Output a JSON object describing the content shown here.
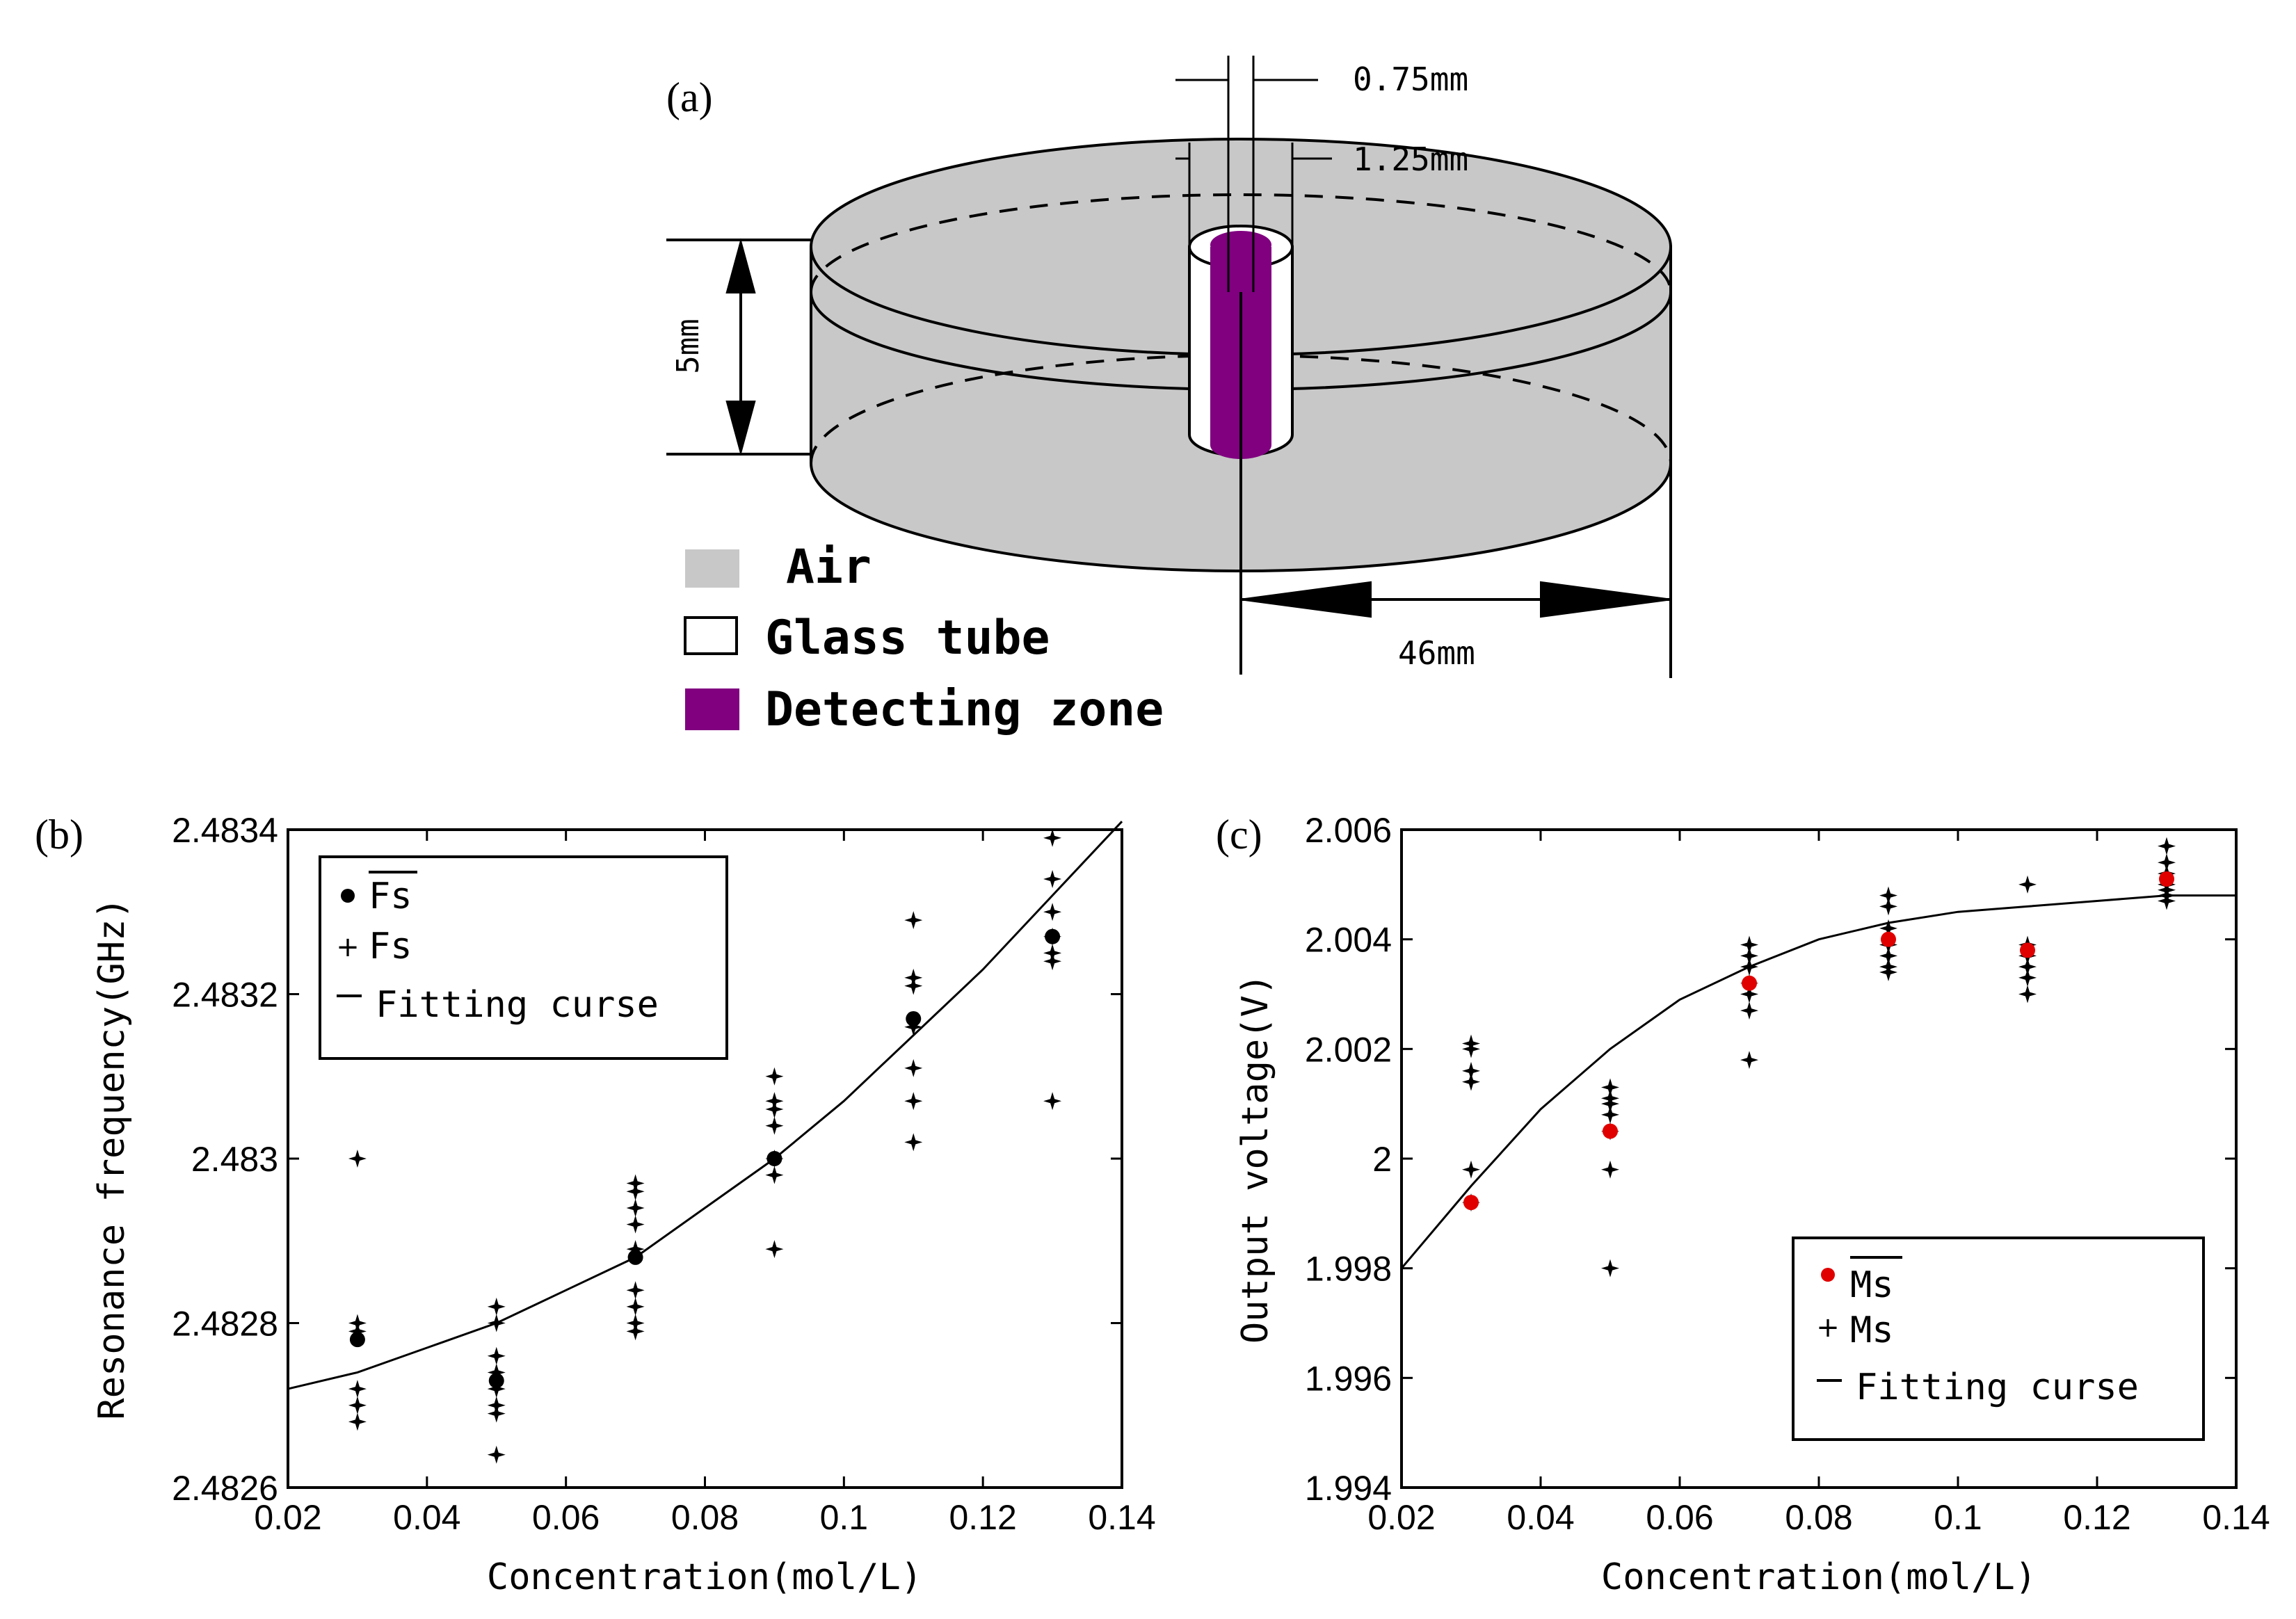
{
  "colors": {
    "air": "#c8c8c8",
    "detecting_zone": "#800080",
    "glass_tube": "#ffffff",
    "mean_marker_c": "#e00000",
    "ink": "#000000"
  },
  "diagram": {
    "label": "(a)",
    "dim_inner": "0.75mm",
    "dim_outer": "1.25mm",
    "dim_height": "5mm",
    "dim_radius": "46mm",
    "legend": [
      {
        "label": "Air",
        "swatch": "air"
      },
      {
        "label": "Glass tube",
        "swatch": "glass_tube"
      },
      {
        "label": "Detecting zone",
        "swatch": "detecting_zone"
      }
    ]
  },
  "chart_data": [
    {
      "type": "scatter",
      "panel_label": "(b)",
      "xlabel": "Concentration(mol/L)",
      "ylabel": "Resonance frequency(GHz)",
      "xlim": [
        0.02,
        0.14
      ],
      "ylim": [
        2.4826,
        2.4834
      ],
      "xticks": [
        "0.02",
        "0.04",
        "0.06",
        "0.08",
        "0.1",
        "0.12",
        "0.14"
      ],
      "yticks": [
        "2.4826",
        "2.4828",
        "2.483",
        "2.4832",
        "2.4834"
      ],
      "legend": {
        "position": "top-left",
        "mean_label": "Fs",
        "raw_label": "Fs",
        "fit_label": "Fitting curse"
      },
      "mean_color": "#000000",
      "means": [
        {
          "x": 0.03,
          "y": 2.48278
        },
        {
          "x": 0.05,
          "y": 2.48273
        },
        {
          "x": 0.07,
          "y": 2.48288
        },
        {
          "x": 0.09,
          "y": 2.483
        },
        {
          "x": 0.11,
          "y": 2.48317
        },
        {
          "x": 0.13,
          "y": 2.48327
        }
      ],
      "raw": [
        {
          "x": 0.03,
          "y": [
            2.483,
            2.4828,
            2.48279,
            2.48272,
            2.4827,
            2.48268
          ]
        },
        {
          "x": 0.05,
          "y": [
            2.48282,
            2.4828,
            2.48276,
            2.48274,
            2.48272,
            2.4827,
            2.48269,
            2.48264
          ]
        },
        {
          "x": 0.07,
          "y": [
            2.48297,
            2.48296,
            2.48294,
            2.48292,
            2.48289,
            2.48284,
            2.48282,
            2.4828,
            2.48279
          ]
        },
        {
          "x": 0.09,
          "y": [
            2.4831,
            2.48307,
            2.48306,
            2.48304,
            2.483,
            2.48298,
            2.48289
          ]
        },
        {
          "x": 0.11,
          "y": [
            2.48329,
            2.48322,
            2.48321,
            2.48316,
            2.48311,
            2.48307,
            2.48302
          ]
        },
        {
          "x": 0.13,
          "y": [
            2.48339,
            2.48334,
            2.4833,
            2.48327,
            2.48325,
            2.48324,
            2.48307
          ]
        }
      ],
      "fit": {
        "x": [
          0.02,
          0.03,
          0.04,
          0.05,
          0.06,
          0.07,
          0.08,
          0.09,
          0.1,
          0.11,
          0.12,
          0.13,
          0.14
        ],
        "y": [
          2.48272,
          2.48274,
          2.48277,
          2.4828,
          2.48284,
          2.48288,
          2.48294,
          2.483,
          2.48307,
          2.48315,
          2.48323,
          2.48332,
          2.48341
        ]
      },
      "grid": false
    },
    {
      "type": "scatter",
      "panel_label": "(c)",
      "xlabel": "Concentration(mol/L)",
      "ylabel": "Output voltage(V)",
      "xlim": [
        0.02,
        0.14
      ],
      "ylim": [
        1.994,
        2.006
      ],
      "xticks": [
        "0.02",
        "0.04",
        "0.06",
        "0.08",
        "0.1",
        "0.12",
        "0.14"
      ],
      "yticks": [
        "1.994",
        "1.996",
        "1.998",
        "2",
        "2.002",
        "2.004",
        "2.006"
      ],
      "legend": {
        "position": "bottom-right",
        "mean_label": "Ms",
        "raw_label": "Ms",
        "fit_label": "Fitting curse"
      },
      "mean_color": "#e00000",
      "means": [
        {
          "x": 0.03,
          "y": 1.9992
        },
        {
          "x": 0.05,
          "y": 2.0005
        },
        {
          "x": 0.07,
          "y": 2.0032
        },
        {
          "x": 0.09,
          "y": 2.004
        },
        {
          "x": 0.11,
          "y": 2.0038
        },
        {
          "x": 0.13,
          "y": 2.0051
        }
      ],
      "raw": [
        {
          "x": 0.03,
          "y": [
            2.0021,
            2.002,
            2.0016,
            2.0014,
            1.9998,
            1.9992
          ]
        },
        {
          "x": 0.05,
          "y": [
            2.0013,
            2.0011,
            2.001,
            2.0008,
            2.0005,
            1.9998,
            1.998
          ]
        },
        {
          "x": 0.07,
          "y": [
            2.0039,
            2.0037,
            2.0035,
            2.0032,
            2.003,
            2.0027,
            2.0018
          ]
        },
        {
          "x": 0.09,
          "y": [
            2.0048,
            2.0046,
            2.0042,
            2.0039,
            2.0037,
            2.0035,
            2.0034
          ]
        },
        {
          "x": 0.11,
          "y": [
            2.005,
            2.0039,
            2.0037,
            2.0035,
            2.0033,
            2.003
          ]
        },
        {
          "x": 0.13,
          "y": [
            2.0057,
            2.0054,
            2.0052,
            2.005,
            2.0049,
            2.0048,
            2.0047
          ]
        }
      ],
      "fit": {
        "x": [
          0.02,
          0.03,
          0.04,
          0.05,
          0.06,
          0.07,
          0.08,
          0.09,
          0.1,
          0.11,
          0.12,
          0.13,
          0.14
        ],
        "y": [
          1.998,
          1.9995,
          2.0009,
          2.002,
          2.0029,
          2.0035,
          2.004,
          2.0043,
          2.0045,
          2.0046,
          2.0047,
          2.0048,
          2.0048
        ]
      },
      "grid": false
    }
  ]
}
